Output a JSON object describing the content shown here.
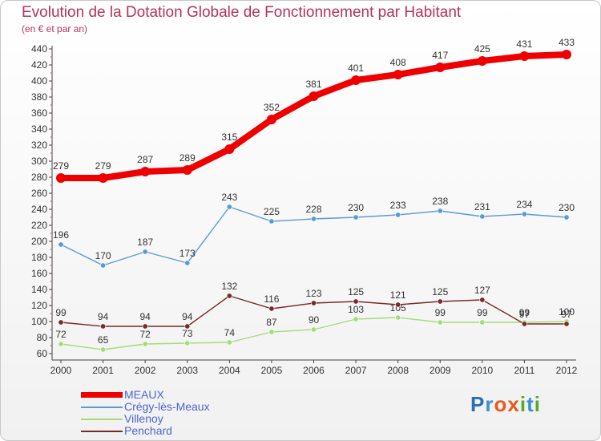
{
  "header": {
    "title": "Evolution de la Dotation Globale de Fonctionnement par Habitant",
    "subtitle": "(en € et par an)"
  },
  "logo": {
    "letters": [
      "P",
      "r",
      "o",
      "x",
      "i",
      "t",
      "i"
    ]
  },
  "colors": {
    "title": "#b5335a",
    "legend_text": "#4d66cc",
    "axis": "#444444",
    "grid_dots": "#cc0000",
    "logo": [
      "#2b6fb5",
      "#3c8fd6",
      "#e85a1e",
      "#e85a1e",
      "#5aa832",
      "#3c8fd6",
      "#5aa832"
    ]
  },
  "chart_data": {
    "type": "line",
    "title": "Evolution de la Dotation Globale de Fonctionnement par Habitant",
    "subtitle": "(en € et par an)",
    "x": [
      2000,
      2001,
      2002,
      2003,
      2004,
      2005,
      2006,
      2007,
      2008,
      2009,
      2010,
      2011,
      2012
    ],
    "ylim": [
      60,
      440
    ],
    "yticks": [
      60,
      80,
      100,
      120,
      140,
      160,
      180,
      200,
      220,
      240,
      260,
      280,
      300,
      320,
      340,
      360,
      380,
      400,
      420,
      440
    ],
    "xlabel": "",
    "ylabel": "",
    "legend_position": "bottom-left",
    "series": [
      {
        "name": "MEAUX",
        "color": "#ee0000",
        "values": [
          279,
          279,
          287,
          289,
          315,
          352,
          381,
          401,
          408,
          417,
          425,
          431,
          433
        ]
      },
      {
        "name": "Crégy-lès-Meaux",
        "color": "#5b9bd5",
        "values": [
          196,
          170,
          187,
          173,
          243,
          225,
          228,
          230,
          233,
          238,
          231,
          234,
          230
        ]
      },
      {
        "name": "Villenoy",
        "color": "#a4dd77",
        "values": [
          72,
          65,
          72,
          73,
          74,
          87,
          90,
          103,
          105,
          99,
          99,
          99,
          100
        ]
      },
      {
        "name": "Penchard",
        "color": "#7a2a2a",
        "values": [
          99,
          94,
          94,
          94,
          132,
          116,
          123,
          125,
          121,
          125,
          127,
          97,
          97
        ]
      }
    ]
  }
}
